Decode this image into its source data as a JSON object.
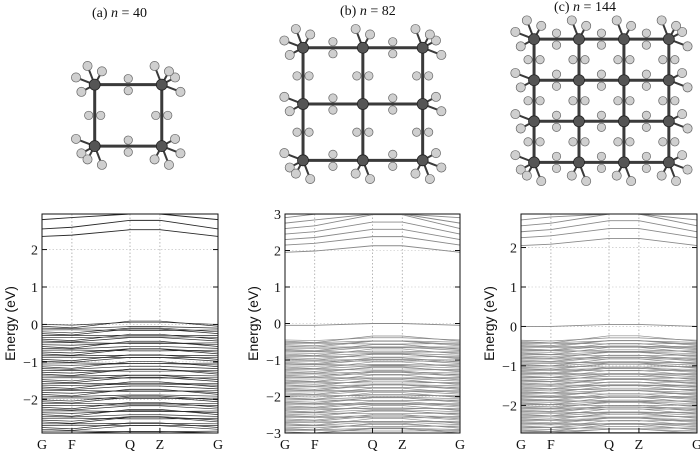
{
  "panels": [
    {
      "caption_prefix": "(a) ",
      "caption_var": "n",
      "caption_suffix": " = 40",
      "colors": {
        "bonds": "#3a3a3a",
        "atom_c": "#555555",
        "atom_h": "#cfcfcf"
      },
      "chart_data": {
        "type": "line",
        "ylabel": "Energy (eV)",
        "categories": [
          "G",
          "F",
          "Q",
          "Z",
          "G"
        ],
        "ylim": [
          -2.9,
          2.95
        ],
        "yticks": [
          -2,
          -1,
          0,
          1,
          2
        ],
        "band_color": "#2a2a2a",
        "conduction_bands": [
          2.35,
          2.55,
          2.8
        ],
        "valence_top": 0.0,
        "valence_bottom": -2.9,
        "valence_count": 60
      }
    },
    {
      "caption_prefix": "(b) ",
      "caption_var": "n",
      "caption_suffix": " = 82",
      "colors": {
        "bonds": "#3a3a3a",
        "atom_c": "#555555",
        "atom_h": "#cfcfcf"
      },
      "chart_data": {
        "type": "line",
        "ylabel": "Energy (eV)",
        "categories": [
          "G",
          "F",
          "Q",
          "Z",
          "G"
        ],
        "ylim": [
          -3,
          3
        ],
        "yticks": [
          -3,
          -2,
          -1,
          0,
          1,
          2,
          3
        ],
        "band_color": "#8a8a8a",
        "conduction_bands": [
          1.95,
          2.15,
          2.3,
          2.45,
          2.6,
          2.75,
          2.9
        ],
        "gap_band": -0.05,
        "valence_top": -0.45,
        "valence_bottom": -3.0,
        "valence_count": 80
      }
    },
    {
      "caption_prefix": "(c) ",
      "caption_var": "n",
      "caption_suffix": " = 144",
      "colors": {
        "bonds": "#3a3a3a",
        "atom_c": "#555555",
        "atom_h": "#cfcfcf"
      },
      "chart_data": {
        "type": "line",
        "ylabel": "Energy (eV)",
        "categories": [
          "G",
          "F",
          "Q",
          "Z",
          "G"
        ],
        "ylim": [
          -2.7,
          2.85
        ],
        "yticks": [
          -2,
          -1,
          0,
          1,
          2
        ],
        "band_color": "#8a8a8a",
        "conduction_bands": [
          2.05,
          2.25,
          2.4,
          2.55,
          2.7
        ],
        "gap_band": 0.0,
        "valence_top": -0.35,
        "valence_bottom": -2.7,
        "valence_count": 90
      }
    }
  ]
}
